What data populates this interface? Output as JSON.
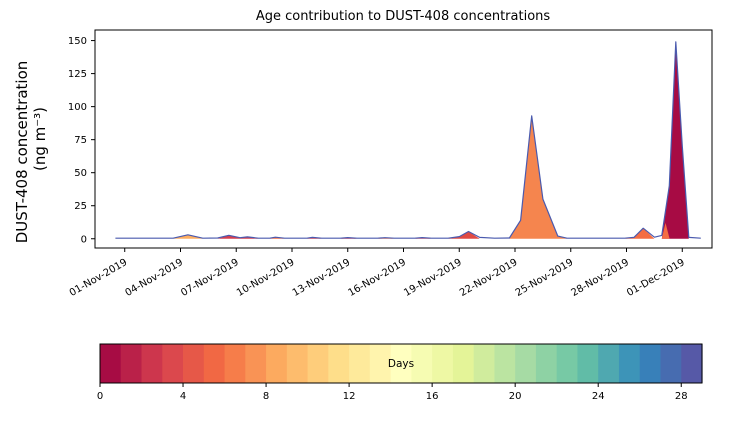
{
  "figure": {
    "title": "Age contribution to DUST-408 concentrations",
    "ylabel_line1": "DUST-408 concentration",
    "ylabel_line2": "(ng m⁻³)"
  },
  "chart_data": {
    "type": "area",
    "title": "Age contribution to DUST-408 concentrations",
    "xlabel": "",
    "ylabel": "DUST-408 concentration (ng m-3)",
    "ylim": [
      -7,
      158
    ],
    "yticks": [
      0,
      25,
      50,
      75,
      100,
      125,
      150
    ],
    "xlim_days": [
      -1.6,
      31.6
    ],
    "xtick_days": [
      0,
      3,
      6,
      9,
      12,
      15,
      18,
      21,
      24,
      27,
      30
    ],
    "xtick_labels": [
      "01-Nov-2019",
      "04-Nov-2019",
      "07-Nov-2019",
      "10-Nov-2019",
      "13-Nov-2019",
      "16-Nov-2019",
      "19-Nov-2019",
      "22-Nov-2019",
      "25-Nov-2019",
      "28-Nov-2019",
      "01-Dec-2019"
    ],
    "grid": false,
    "legend": "colorbar-bottom",
    "line_color": "#4a5aae",
    "line": [
      [
        -0.5,
        0.4
      ],
      [
        2.6,
        0.4
      ],
      [
        3.4,
        3.0
      ],
      [
        4.2,
        0.4
      ],
      [
        5.0,
        0.6
      ],
      [
        5.6,
        2.6
      ],
      [
        6.2,
        0.8
      ],
      [
        6.6,
        1.4
      ],
      [
        7.2,
        0.4
      ],
      [
        7.8,
        0.4
      ],
      [
        8.1,
        1.2
      ],
      [
        8.6,
        0.4
      ],
      [
        9.8,
        0.4
      ],
      [
        10.1,
        1.0
      ],
      [
        10.6,
        0.4
      ],
      [
        11.6,
        0.4
      ],
      [
        12.0,
        0.9
      ],
      [
        12.5,
        0.4
      ],
      [
        13.6,
        0.4
      ],
      [
        14.0,
        0.8
      ],
      [
        14.5,
        0.4
      ],
      [
        15.6,
        0.4
      ],
      [
        16.0,
        0.9
      ],
      [
        16.5,
        0.4
      ],
      [
        17.4,
        0.4
      ],
      [
        18.0,
        1.6
      ],
      [
        18.5,
        5.5
      ],
      [
        19.1,
        1.0
      ],
      [
        19.9,
        0.4
      ],
      [
        20.7,
        0.6
      ],
      [
        21.3,
        14
      ],
      [
        21.9,
        93
      ],
      [
        22.5,
        30
      ],
      [
        23.3,
        2
      ],
      [
        23.8,
        0.4
      ],
      [
        26.9,
        0.4
      ],
      [
        27.4,
        1.0
      ],
      [
        27.9,
        8
      ],
      [
        28.5,
        1.2
      ],
      [
        28.9,
        2.5
      ],
      [
        29.3,
        40
      ],
      [
        29.65,
        149
      ],
      [
        30.0,
        70
      ],
      [
        30.35,
        1.0
      ],
      [
        31.0,
        0.4
      ]
    ],
    "regions": [
      {
        "age_color": "#fdae61",
        "points": [
          [
            2.6,
            0
          ],
          [
            3.4,
            3.0
          ],
          [
            4.2,
            0
          ]
        ]
      },
      {
        "age_color": "#d53e4f",
        "points": [
          [
            5.0,
            0
          ],
          [
            5.6,
            2.6
          ],
          [
            6.2,
            0.6
          ],
          [
            6.6,
            1.4
          ],
          [
            7.2,
            0
          ]
        ]
      },
      {
        "age_color": "#f46d43",
        "points": [
          [
            7.8,
            0
          ],
          [
            8.1,
            1.2
          ],
          [
            8.6,
            0
          ]
        ]
      },
      {
        "age_color": "#d53e4f",
        "points": [
          [
            9.8,
            0
          ],
          [
            10.1,
            1.0
          ],
          [
            10.6,
            0
          ]
        ]
      },
      {
        "age_color": "#c1294a",
        "points": [
          [
            11.6,
            0
          ],
          [
            12.0,
            0.9
          ],
          [
            12.5,
            0
          ]
        ]
      },
      {
        "age_color": "#f46d43",
        "points": [
          [
            13.6,
            0
          ],
          [
            14.0,
            0.8
          ],
          [
            14.5,
            0
          ]
        ]
      },
      {
        "age_color": "#d53e4f",
        "points": [
          [
            15.6,
            0
          ],
          [
            16.0,
            0.9
          ],
          [
            16.5,
            0
          ]
        ]
      },
      {
        "age_color": "#e04a43",
        "points": [
          [
            17.4,
            0
          ],
          [
            18.0,
            1.6
          ],
          [
            18.5,
            5.5
          ],
          [
            19.1,
            0
          ]
        ]
      },
      {
        "age_color": "#f5854e",
        "points": [
          [
            20.7,
            0
          ],
          [
            21.3,
            14
          ],
          [
            21.9,
            93
          ],
          [
            22.5,
            30
          ],
          [
            23.3,
            2
          ],
          [
            23.8,
            0
          ]
        ]
      },
      {
        "age_color": "#f46d43",
        "points": [
          [
            26.9,
            0
          ],
          [
            27.4,
            1.0
          ],
          [
            27.9,
            8
          ],
          [
            28.5,
            0
          ]
        ]
      },
      {
        "age_color": "#a70b44",
        "points": [
          [
            28.9,
            0
          ],
          [
            29.3,
            40
          ],
          [
            29.65,
            149
          ],
          [
            30.0,
            70
          ],
          [
            30.35,
            0
          ]
        ]
      },
      {
        "age_color": "#f46d43",
        "points": [
          [
            28.9,
            0
          ],
          [
            29.1,
            12
          ],
          [
            29.32,
            0
          ]
        ]
      }
    ],
    "colorbar": {
      "label": "Days",
      "ticks": [
        0,
        4,
        8,
        12,
        16,
        20,
        24,
        28
      ],
      "vmin": 0,
      "vmax": 29,
      "n_segments": 29,
      "spectral_anchors": [
        "#9e0142",
        "#d53e4f",
        "#f46d43",
        "#fdae61",
        "#fee08b",
        "#ffffbf",
        "#e6f598",
        "#abdda4",
        "#66c2a5",
        "#3288bd",
        "#5e4fa2"
      ]
    }
  }
}
